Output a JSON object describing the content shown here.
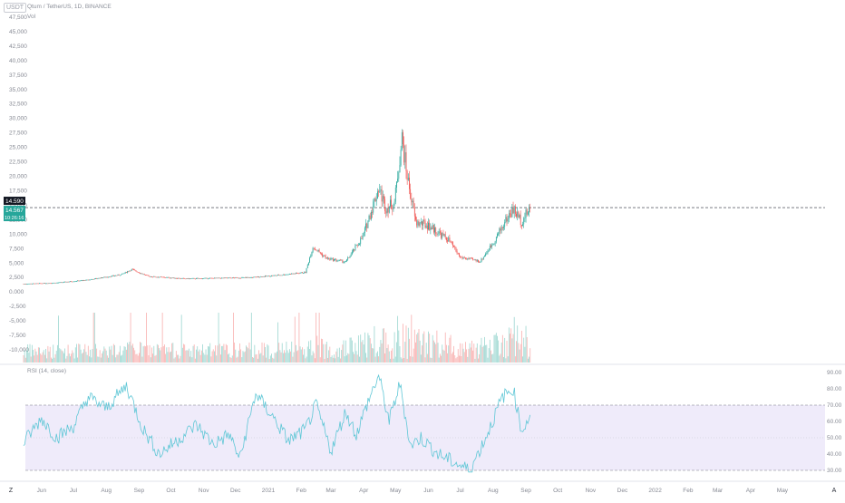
{
  "header": {
    "symbol_box": "USDT",
    "title": "Qtum / TetherUS, 1D, BINANCE",
    "volume_label": "Vol",
    "rsi_label": "RSI (14, close)"
  },
  "price_axis": {
    "ticks": [
      "47,500",
      "45,000",
      "42,500",
      "40,000",
      "37,500",
      "35,000",
      "32,500",
      "30,000",
      "27,500",
      "25,000",
      "22,500",
      "20,000",
      "17,500",
      "15,000",
      "12,500",
      "10,000",
      "7,500",
      "5,000",
      "2,500",
      "0.000",
      "-2,500",
      "-5,000",
      "-7,500",
      "-10,000"
    ],
    "last_price": "14.590",
    "current_price": "14.567",
    "countdown": "10:26:16"
  },
  "rsi_axis": {
    "ticks": [
      "90.00",
      "80.00",
      "70.00",
      "60.00",
      "50.00",
      "40.00",
      "30.00"
    ]
  },
  "time_axis": {
    "labels": [
      "Jun",
      "Jul",
      "Aug",
      "Sep",
      "Oct",
      "Nov",
      "Dec",
      "2021",
      "Feb",
      "Mar",
      "Apr",
      "May",
      "Jun",
      "Jul",
      "Aug",
      "Sep",
      "Oct",
      "Nov",
      "Dec",
      "2022",
      "Feb",
      "Mar",
      "Apr",
      "May"
    ]
  },
  "bottom_left_icon": "Z",
  "bottom_right_icon": "A",
  "colors": {
    "up": "#26a69a",
    "down": "#ef5350",
    "rsi_line": "#5fc7d6",
    "rsi_band": "#efebfa",
    "last_price_bg": "#131722",
    "current_price_bg": "#26a69a"
  },
  "chart_data": {
    "type": "candlestick",
    "title": "Qtum / TetherUS, 1D, BINANCE",
    "x_range": [
      "2020-05-15",
      "2022-05-31"
    ],
    "price_scale": {
      "min": -10,
      "max": 47.5
    },
    "price_close_path": [
      [
        "2020-05-15",
        1.4
      ],
      [
        "2020-06-15",
        1.6
      ],
      [
        "2020-07-15",
        2.1
      ],
      [
        "2020-08-15",
        3.0
      ],
      [
        "2020-08-25",
        3.9
      ],
      [
        "2020-09-10",
        2.7
      ],
      [
        "2020-10-15",
        2.3
      ],
      [
        "2020-11-15",
        2.4
      ],
      [
        "2020-12-15",
        2.5
      ],
      [
        "2021-01-10",
        2.9
      ],
      [
        "2021-02-05",
        3.4
      ],
      [
        "2021-02-12",
        7.8
      ],
      [
        "2021-02-25",
        5.8
      ],
      [
        "2021-03-15",
        5.2
      ],
      [
        "2021-03-31",
        9.5
      ],
      [
        "2021-04-15",
        18.0
      ],
      [
        "2021-04-22",
        14.5
      ],
      [
        "2021-04-30",
        15.5
      ],
      [
        "2021-05-07",
        26.5
      ],
      [
        "2021-05-12",
        20.0
      ],
      [
        "2021-05-20",
        12.0
      ],
      [
        "2021-06-01",
        11.5
      ],
      [
        "2021-06-20",
        9.0
      ],
      [
        "2021-07-01",
        6.0
      ],
      [
        "2021-07-20",
        5.3
      ],
      [
        "2021-08-01",
        8.5
      ],
      [
        "2021-08-15",
        13.0
      ],
      [
        "2021-08-20",
        14.3
      ],
      [
        "2021-08-28",
        12.2
      ],
      [
        "2021-09-05",
        14.567
      ]
    ],
    "rsi": {
      "period": 14,
      "overbought": 70,
      "oversold": 30,
      "range": [
        30,
        90
      ],
      "points": [
        [
          "2020-05-15",
          47
        ],
        [
          "2020-06-01",
          62
        ],
        [
          "2020-06-15",
          50
        ],
        [
          "2020-07-01",
          57
        ],
        [
          "2020-07-15",
          75
        ],
        [
          "2020-08-01",
          68
        ],
        [
          "2020-08-20",
          82
        ],
        [
          "2020-09-05",
          55
        ],
        [
          "2020-09-20",
          40
        ],
        [
          "2020-10-10",
          50
        ],
        [
          "2020-10-25",
          58
        ],
        [
          "2020-11-10",
          46
        ],
        [
          "2020-11-25",
          52
        ],
        [
          "2020-12-05",
          37
        ],
        [
          "2020-12-20",
          77
        ],
        [
          "2021-01-05",
          63
        ],
        [
          "2021-01-20",
          48
        ],
        [
          "2021-02-05",
          55
        ],
        [
          "2021-02-15",
          70
        ],
        [
          "2021-03-01",
          42
        ],
        [
          "2021-03-15",
          66
        ],
        [
          "2021-03-25",
          52
        ],
        [
          "2021-04-05",
          72
        ],
        [
          "2021-04-15",
          88
        ],
        [
          "2021-04-25",
          60
        ],
        [
          "2021-05-05",
          83
        ],
        [
          "2021-05-15",
          45
        ],
        [
          "2021-05-25",
          50
        ],
        [
          "2021-06-10",
          40
        ],
        [
          "2021-06-25",
          35
        ],
        [
          "2021-07-10",
          30
        ],
        [
          "2021-07-25",
          50
        ],
        [
          "2021-08-10",
          75
        ],
        [
          "2021-08-20",
          80
        ],
        [
          "2021-08-28",
          54
        ],
        [
          "2021-09-05",
          64
        ]
      ]
    }
  }
}
